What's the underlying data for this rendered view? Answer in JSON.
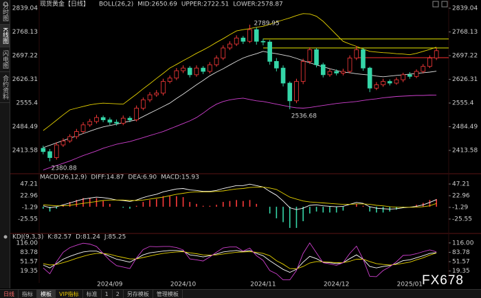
{
  "chart_data": [
    {
      "type": "candlestick",
      "title": "现货黄金【日线】",
      "indicator": "BOLL(26,2)",
      "categories": [
        null,
        null,
        null,
        null,
        null,
        null,
        null,
        null,
        null,
        null,
        "2024/09",
        null,
        null,
        null,
        null,
        null,
        null,
        null,
        null,
        null,
        null,
        "2024/10",
        null,
        null,
        null,
        null,
        null,
        null,
        null,
        null,
        null,
        null,
        null,
        "2024/11",
        null,
        null,
        null,
        null,
        null,
        null,
        null,
        null,
        null,
        null,
        "2024/12",
        null,
        null,
        null,
        null,
        null,
        null,
        null,
        null,
        null,
        null,
        "2025/01",
        null,
        null,
        null,
        null
      ],
      "open": [
        2420,
        2410,
        2392,
        2430,
        2442,
        2455,
        2470,
        2490,
        2500,
        2512,
        2505,
        2498,
        2495,
        2510,
        2505,
        2540,
        2565,
        2580,
        2585,
        2620,
        2630,
        2652,
        2660,
        2640,
        2660,
        2650,
        2670,
        2690,
        2720,
        2732,
        2750,
        2740,
        2775,
        2740,
        2738,
        2680,
        2660,
        2615,
        2562,
        2620,
        2680,
        2715,
        2670,
        2640,
        2650,
        2645,
        2650,
        2690,
        2715,
        2660,
        2600,
        2610,
        2620,
        2615,
        2625,
        2640,
        2635,
        2650,
        2665,
        2690
      ],
      "high": [
        2428,
        2418,
        2438,
        2450,
        2462,
        2478,
        2498,
        2508,
        2520,
        2518,
        2512,
        2506,
        2518,
        2516,
        2548,
        2572,
        2588,
        2594,
        2628,
        2638,
        2660,
        2668,
        2666,
        2668,
        2666,
        2678,
        2698,
        2728,
        2740,
        2758,
        2756,
        2789.95,
        2782,
        2748,
        2744,
        2690,
        2668,
        2620,
        2628,
        2688,
        2722,
        2720,
        2676,
        2658,
        2656,
        2658,
        2698,
        2726,
        2720,
        2664,
        2618,
        2628,
        2626,
        2632,
        2646,
        2648,
        2656,
        2672,
        2698,
        2720
      ],
      "low": [
        2402,
        2380.88,
        2386,
        2424,
        2436,
        2448,
        2464,
        2484,
        2494,
        2498,
        2490,
        2488,
        2489,
        2498,
        2500,
        2534,
        2558,
        2574,
        2578,
        2614,
        2624,
        2645,
        2632,
        2634,
        2642,
        2644,
        2664,
        2684,
        2714,
        2726,
        2732,
        2735,
        2730,
        2728,
        2670,
        2650,
        2605,
        2536.68,
        2555,
        2612,
        2672,
        2662,
        2632,
        2634,
        2638,
        2638,
        2644,
        2684,
        2652,
        2588,
        2594,
        2604,
        2608,
        2610,
        2618,
        2628,
        2630,
        2644,
        2660,
        2684
      ],
      "close": [
        2410,
        2392,
        2430,
        2442,
        2455,
        2470,
        2490,
        2500,
        2512,
        2505,
        2498,
        2495,
        2510,
        2505,
        2540,
        2565,
        2580,
        2585,
        2620,
        2630,
        2652,
        2660,
        2640,
        2660,
        2650,
        2670,
        2690,
        2720,
        2732,
        2750,
        2740,
        2775,
        2740,
        2738,
        2680,
        2660,
        2615,
        2562,
        2620,
        2680,
        2715,
        2670,
        2640,
        2650,
        2645,
        2650,
        2690,
        2715,
        2660,
        2600,
        2610,
        2620,
        2615,
        2625,
        2640,
        2635,
        2650,
        2665,
        2690,
        2712
      ],
      "up_color": "#ff3b3b",
      "down_color": "#35d6a8",
      "series": [
        {
          "name": "MID:2650.69",
          "color": "#e0e0e0",
          "values": [
            2422,
            2429,
            2436,
            2443,
            2450,
            2457,
            2464,
            2471,
            2478,
            2484,
            2488,
            2492,
            2497,
            2501,
            2505,
            2515,
            2525,
            2535,
            2545,
            2555,
            2569,
            2582,
            2596,
            2610,
            2623,
            2637,
            2648,
            2658,
            2669,
            2680,
            2690,
            2697,
            2703,
            2710,
            2706,
            2703,
            2699,
            2695,
            2689,
            2682,
            2676,
            2669,
            2664,
            2658,
            2653,
            2648,
            2646,
            2643,
            2641,
            2639,
            2636,
            2634,
            2636,
            2638,
            2640,
            2642,
            2644,
            2646,
            2648,
            2650.69
          ]
        },
        {
          "name": "UPPER:2722.51",
          "color": "#e6d200",
          "values": [
            2473,
            2488,
            2504,
            2520,
            2535,
            2540,
            2545,
            2550,
            2553,
            2555,
            2554,
            2553,
            2552,
            2567,
            2582,
            2598,
            2613,
            2629,
            2644,
            2660,
            2671,
            2682,
            2693,
            2704,
            2714,
            2725,
            2737,
            2748,
            2760,
            2771,
            2775,
            2778,
            2782,
            2785,
            2791,
            2798,
            2804,
            2810,
            2817,
            2823,
            2822,
            2815,
            2800,
            2780,
            2760,
            2740,
            2732,
            2725,
            2717,
            2710,
            2708,
            2706,
            2705,
            2703,
            2702,
            2700,
            2704,
            2710,
            2716,
            2722.51
          ]
        },
        {
          "name": "LOWER:2578.87",
          "color": "#d040d0",
          "values": [
            2355,
            2362,
            2368,
            2375,
            2382,
            2390,
            2398,
            2405,
            2412,
            2420,
            2426,
            2432,
            2436,
            2440,
            2446,
            2452,
            2458,
            2464,
            2470,
            2478,
            2486,
            2494,
            2502,
            2512,
            2525,
            2540,
            2552,
            2560,
            2565,
            2568,
            2570,
            2566,
            2562,
            2560,
            2556,
            2552,
            2548,
            2544,
            2541,
            2540,
            2542,
            2545,
            2548,
            2551,
            2554,
            2556,
            2558,
            2560,
            2563,
            2566,
            2568,
            2571,
            2573,
            2575,
            2576,
            2577,
            2578,
            2578,
            2579,
            2578.87
          ]
        }
      ],
      "drawn_lines": [
        {
          "value": 2747,
          "from": 33,
          "color": "#e6e600"
        },
        {
          "value": 2720,
          "from": 33,
          "color": "#e6e600"
        },
        {
          "value": 2691,
          "from": 47,
          "color": "#ff3030"
        }
      ],
      "ylim": [
        2350,
        2853.4
      ],
      "yticks": [
        2839.04,
        2768.13,
        2697.22,
        2626.31,
        2555.4,
        2484.49,
        2413.58
      ]
    },
    {
      "type": "macd",
      "title": "MACD(26,12,9)",
      "series": [
        {
          "name": "DIFF:14.87",
          "color": "#ffffff",
          "values": [
            2,
            -2,
            0,
            4,
            8,
            12,
            16,
            18,
            20,
            19,
            17,
            14,
            13,
            11,
            14,
            19,
            23,
            26,
            31,
            34,
            37,
            38,
            35,
            34,
            32,
            32,
            34,
            38,
            41,
            44,
            44,
            47,
            44,
            41,
            32,
            24,
            12,
            -2,
            -6,
            -3,
            3,
            4,
            2,
            1,
            0,
            1,
            5,
            9,
            7,
            0,
            -3,
            -4,
            -5,
            -4,
            -2,
            -1,
            1,
            4,
            9,
            14.87
          ]
        },
        {
          "name": "DEA:6.90",
          "color": "#e6d200",
          "values": [
            4,
            3,
            2,
            2,
            3,
            5,
            7,
            9,
            11,
            13,
            14,
            14,
            14,
            13,
            13,
            14,
            16,
            18,
            20,
            23,
            26,
            28,
            30,
            31,
            31,
            31,
            32,
            33,
            35,
            37,
            38,
            40,
            41,
            41,
            39,
            36,
            28,
            20,
            16,
            12,
            10,
            9,
            8,
            7,
            6,
            5,
            5,
            6,
            6,
            5,
            3,
            2,
            0,
            -1,
            -1,
            -1,
            -1,
            0,
            2,
            6.9
          ]
        },
        {
          "name": "MACD:15.93",
          "color": "#d040d0",
          "up_color": "#ff3b3b",
          "down_color": "#35d6a8",
          "values": [
            -4,
            -10,
            -4,
            4,
            10,
            14,
            18,
            18,
            18,
            12,
            6,
            0,
            -2,
            -4,
            2,
            10,
            14,
            16,
            22,
            22,
            22,
            20,
            10,
            6,
            2,
            2,
            4,
            10,
            12,
            14,
            12,
            14,
            6,
            0,
            -14,
            -24,
            -32,
            -44,
            -44,
            -30,
            -14,
            -10,
            -12,
            -12,
            -12,
            -8,
            0,
            6,
            2,
            -10,
            -12,
            -12,
            -10,
            -6,
            -2,
            0,
            4,
            8,
            14,
            15.93
          ]
        }
      ],
      "ylim": [
        -49.8,
        61.5
      ],
      "yticks": [
        47.21,
        22.96,
        -1.29,
        -25.55
      ]
    },
    {
      "type": "line",
      "title": "KDJ(9,3,3)",
      "series": [
        {
          "name": "K:82.57",
          "color": "#ffffff",
          "values": [
            40,
            30,
            45,
            60,
            70,
            78,
            85,
            88,
            88,
            80,
            70,
            60,
            55,
            50,
            62,
            75,
            82,
            85,
            88,
            90,
            90,
            88,
            75,
            72,
            68,
            72,
            78,
            85,
            88,
            90,
            86,
            90,
            80,
            72,
            55,
            40,
            25,
            15,
            25,
            50,
            70,
            62,
            50,
            48,
            45,
            48,
            62,
            75,
            60,
            35,
            30,
            35,
            38,
            45,
            55,
            58,
            65,
            72,
            80,
            82.57
          ]
        },
        {
          "name": "D:81.24",
          "color": "#e6d200",
          "values": [
            45,
            40,
            42,
            48,
            55,
            63,
            70,
            76,
            80,
            80,
            77,
            71,
            66,
            61,
            61,
            66,
            71,
            76,
            80,
            83,
            85,
            86,
            82,
            79,
            75,
            74,
            75,
            78,
            81,
            84,
            85,
            86,
            84,
            80,
            72,
            55,
            43,
            28,
            27,
            35,
            47,
            52,
            51,
            50,
            48,
            48,
            53,
            60,
            60,
            52,
            45,
            42,
            40,
            42,
            46,
            50,
            58,
            65,
            74,
            81.24
          ]
        },
        {
          "name": "J:85.25",
          "color": "#d040d0",
          "values": [
            30,
            10,
            51,
            84,
            100,
            108,
            115,
            112,
            104,
            80,
            56,
            38,
            33,
            28,
            64,
            93,
            104,
            103,
            104,
            104,
            100,
            92,
            61,
            58,
            54,
            68,
            84,
            99,
            102,
            102,
            88,
            98,
            72,
            56,
            21,
            10,
            -11,
            -11,
            21,
            80,
            116,
            82,
            48,
            44,
            39,
            48,
            80,
            105,
            60,
            1,
            0,
            21,
            34,
            51,
            73,
            74,
            79,
            86,
            92,
            85.25
          ]
        }
      ],
      "ylim": [
        -12,
        125
      ],
      "yticks": [
        {
          "value": 116,
          "label": "116.00"
        },
        83.78,
        51.57,
        19.35
      ]
    }
  ],
  "ui": {
    "sidebar": [
      "分时图",
      "K线图",
      "闪电图",
      "合约资料"
    ],
    "bottom_tabs": [
      "日线",
      "指标",
      "模板",
      "VIP指标",
      "标准",
      "1",
      "2",
      "另存模板",
      "管理模板"
    ],
    "watermark": "FX678"
  }
}
